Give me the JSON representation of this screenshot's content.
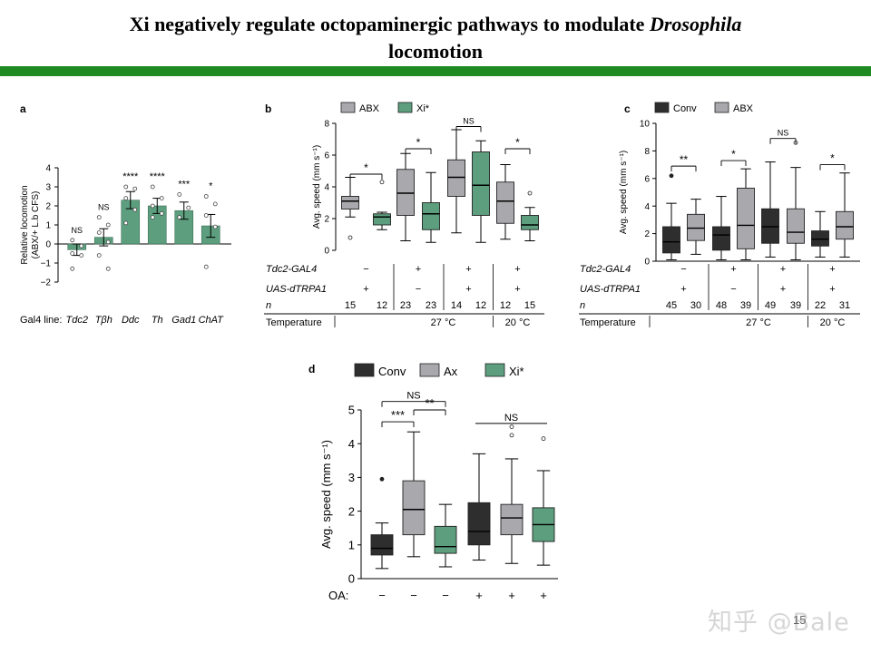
{
  "page": {
    "title_prefix": "Xi negatively regulate octopaminergic pathways to modulate ",
    "title_italic": "Drosophila",
    "title_suffix": " locomotion",
    "watermark": "知乎 @Bale",
    "page_number": "15"
  },
  "colors": {
    "green": "#5c9e7e",
    "grey": "#a8a8ad",
    "dark": "#2e2e2e",
    "rule": "#1f8a22"
  },
  "chart_data": [
    {
      "panel": "a",
      "type": "bar",
      "ylabel_line1": "Relative locomotion",
      "ylabel_line2": "(ABX/+ L.b CFS)",
      "ylim": [
        -2,
        4
      ],
      "yticks": [
        -2,
        -1,
        0,
        1,
        2,
        3,
        4
      ],
      "categories_label": "Gal4 line:",
      "categories": [
        "Tdc2",
        "Tβh",
        "Ddc",
        "Th",
        "Gad1",
        "ChAT"
      ],
      "values": [
        -0.3,
        0.35,
        2.3,
        2.0,
        1.75,
        0.95
      ],
      "error": [
        0.3,
        0.45,
        0.45,
        0.4,
        0.45,
        0.6
      ],
      "points": [
        [
          0.2,
          -0.1,
          -0.5,
          -0.6,
          -1.3
        ],
        [
          1.4,
          1.0,
          0.6,
          0.1,
          -0.6,
          -1.3
        ],
        [
          3.0,
          2.9,
          2.4,
          1.8,
          1.1
        ],
        [
          3.0,
          2.4,
          2.0,
          1.6,
          1.4
        ],
        [
          2.6,
          1.9,
          1.4
        ],
        [
          2.5,
          2.1,
          1.5,
          0.9,
          -1.2
        ]
      ],
      "significance": [
        "NS",
        "NS",
        "****",
        "****",
        "***",
        "*"
      ],
      "bar_colors": [
        "green",
        "green",
        "green",
        "green",
        "green",
        "green"
      ]
    },
    {
      "panel": "b",
      "type": "box",
      "ylabel": "Avg. speed (mm s⁻¹)",
      "ylim": [
        0,
        8
      ],
      "yticks": [
        0,
        2,
        4,
        6,
        8
      ],
      "legend": [
        {
          "name": "ABX",
          "color": "grey"
        },
        {
          "name": "Xi*",
          "color": "green"
        }
      ],
      "boxes": [
        {
          "color": "grey",
          "whisker_low": 2.1,
          "q1": 2.6,
          "median": 3.1,
          "q3": 3.4,
          "whisker_high": 4.6,
          "outliers": [
            0.8
          ]
        },
        {
          "color": "green",
          "whisker_low": 1.3,
          "q1": 1.6,
          "median": 2.1,
          "q3": 2.3,
          "whisker_high": 2.4,
          "outliers": [
            4.3
          ]
        },
        {
          "color": "grey",
          "whisker_low": 0.6,
          "q1": 2.2,
          "median": 3.6,
          "q3": 5.1,
          "whisker_high": 6.1,
          "outliers": []
        },
        {
          "color": "green",
          "whisker_low": 0.5,
          "q1": 1.3,
          "median": 2.3,
          "q3": 3.0,
          "whisker_high": 4.9,
          "outliers": []
        },
        {
          "color": "grey",
          "whisker_low": 1.1,
          "q1": 3.4,
          "median": 4.6,
          "q3": 5.7,
          "whisker_high": 7.6,
          "outliers": []
        },
        {
          "color": "green",
          "whisker_low": 0.5,
          "q1": 2.2,
          "median": 4.1,
          "q3": 6.2,
          "whisker_high": 6.9,
          "outliers": []
        },
        {
          "color": "grey",
          "whisker_low": 0.7,
          "q1": 1.7,
          "median": 3.1,
          "q3": 4.3,
          "whisker_high": 5.4,
          "outliers": []
        },
        {
          "color": "green",
          "whisker_low": 0.6,
          "q1": 1.3,
          "median": 1.6,
          "q3": 2.2,
          "whisker_high": 2.7,
          "outliers": [
            3.6
          ]
        }
      ],
      "brackets": [
        {
          "from": 0,
          "to": 1,
          "label": "*",
          "y": 4.8
        },
        {
          "from": 2,
          "to": 3,
          "label": "*",
          "y": 6.4
        },
        {
          "from": 4,
          "to": 5,
          "label": "NS",
          "y": 7.8
        },
        {
          "from": 6,
          "to": 7,
          "label": "*",
          "y": 6.4
        }
      ],
      "rows": [
        {
          "label": "Tdc2-GAL4",
          "italic": true,
          "values": [
            "−",
            "+",
            "+",
            "+"
          ]
        },
        {
          "label": "UAS-dTRPA1",
          "italic": true,
          "values": [
            "+",
            "−",
            "+",
            "+"
          ]
        },
        {
          "label": "n",
          "italic": true,
          "values": [
            "15",
            "12",
            "23",
            "23",
            "14",
            "12",
            "12",
            "15"
          ]
        }
      ],
      "temperature_label": "Temperature",
      "temperatures": [
        "27 °C",
        "20 °C"
      ]
    },
    {
      "panel": "c",
      "type": "box",
      "ylabel": "Avg. speed (mm s⁻¹)",
      "ylim": [
        0,
        10
      ],
      "yticks": [
        0,
        2,
        4,
        6,
        8,
        10
      ],
      "legend": [
        {
          "name": "Conv",
          "color": "dark"
        },
        {
          "name": "ABX",
          "color": "grey"
        }
      ],
      "boxes": [
        {
          "color": "dark",
          "whisker_low": 0.1,
          "q1": 0.6,
          "median": 1.4,
          "q3": 2.5,
          "whisker_high": 4.2,
          "outliers": [
            6.2
          ]
        },
        {
          "color": "grey",
          "whisker_low": 0.5,
          "q1": 1.5,
          "median": 2.4,
          "q3": 3.4,
          "whisker_high": 4.5,
          "outliers": []
        },
        {
          "color": "dark",
          "whisker_low": 0.1,
          "q1": 0.8,
          "median": 1.9,
          "q3": 2.5,
          "whisker_high": 4.7,
          "outliers": []
        },
        {
          "color": "grey",
          "whisker_low": 0.1,
          "q1": 0.9,
          "median": 2.6,
          "q3": 5.3,
          "whisker_high": 6.7,
          "outliers": []
        },
        {
          "color": "dark",
          "whisker_low": 0.3,
          "q1": 1.3,
          "median": 2.5,
          "q3": 3.8,
          "whisker_high": 7.2,
          "outliers": []
        },
        {
          "color": "grey",
          "whisker_low": 0.1,
          "q1": 1.3,
          "median": 2.1,
          "q3": 3.8,
          "whisker_high": 6.8,
          "outliers": [
            8.6
          ]
        },
        {
          "color": "dark",
          "whisker_low": 0.3,
          "q1": 1.1,
          "median": 1.6,
          "q3": 2.2,
          "whisker_high": 3.6,
          "outliers": []
        },
        {
          "color": "grey",
          "whisker_low": 0.3,
          "q1": 1.6,
          "median": 2.5,
          "q3": 3.6,
          "whisker_high": 6.4,
          "outliers": []
        }
      ],
      "brackets": [
        {
          "from": 0,
          "to": 1,
          "label": "**",
          "y": 6.9
        },
        {
          "from": 2,
          "to": 3,
          "label": "*",
          "y": 7.3
        },
        {
          "from": 4,
          "to": 5,
          "label": "NS",
          "y": 8.9
        },
        {
          "from": 6,
          "to": 7,
          "label": "*",
          "y": 7.0
        }
      ],
      "rows": [
        {
          "label": "Tdc2-GAL4",
          "italic": true,
          "values": [
            "−",
            "+",
            "+",
            "+"
          ]
        },
        {
          "label": "UAS-dTRPA1",
          "italic": true,
          "values": [
            "+",
            "−",
            "+",
            "+"
          ]
        },
        {
          "label": "n",
          "italic": true,
          "values": [
            "45",
            "30",
            "48",
            "39",
            "49",
            "39",
            "22",
            "31"
          ]
        }
      ],
      "temperature_label": "Temperature",
      "temperatures": [
        "27 °C",
        "20 °C"
      ]
    },
    {
      "panel": "d",
      "type": "box",
      "ylabel": "Avg. speed (mm s⁻¹)",
      "ylim": [
        0,
        5
      ],
      "yticks": [
        0,
        1,
        2,
        3,
        4,
        5
      ],
      "legend": [
        {
          "name": "Conv",
          "color": "dark"
        },
        {
          "name": "Ax",
          "color": "grey"
        },
        {
          "name": "Xi*",
          "color": "green"
        }
      ],
      "boxes": [
        {
          "color": "dark",
          "whisker_low": 0.3,
          "q1": 0.7,
          "median": 0.9,
          "q3": 1.3,
          "whisker_high": 1.65,
          "outliers": [
            2.95
          ]
        },
        {
          "color": "grey",
          "whisker_low": 0.65,
          "q1": 1.3,
          "median": 2.05,
          "q3": 2.9,
          "whisker_high": 4.35,
          "outliers": []
        },
        {
          "color": "green",
          "whisker_low": 0.35,
          "q1": 0.75,
          "median": 0.95,
          "q3": 1.55,
          "whisker_high": 2.2,
          "outliers": []
        },
        {
          "color": "dark",
          "whisker_low": 0.55,
          "q1": 1.0,
          "median": 1.4,
          "q3": 2.25,
          "whisker_high": 3.7,
          "outliers": []
        },
        {
          "color": "grey",
          "whisker_low": 0.45,
          "q1": 1.3,
          "median": 1.8,
          "q3": 2.2,
          "whisker_high": 3.55,
          "outliers": [
            4.25,
            4.5
          ]
        },
        {
          "color": "green",
          "whisker_low": 0.4,
          "q1": 1.1,
          "median": 1.6,
          "q3": 2.1,
          "whisker_high": 3.2,
          "outliers": [
            4.15
          ]
        }
      ],
      "brackets": [
        {
          "from": 0,
          "to": 1,
          "label": "***",
          "y": 4.65,
          "type": "bracket"
        },
        {
          "from": 1,
          "to": 2,
          "label": "**",
          "y": 5.0,
          "type": "bracket"
        },
        {
          "from": 0,
          "to": 2,
          "label": "NS",
          "y": 5.25,
          "type": "bracket"
        },
        {
          "from": 3,
          "to": 5,
          "label": "NS",
          "y": 4.6,
          "type": "line"
        }
      ],
      "rows": [
        {
          "label": "OA:",
          "italic": false,
          "values": [
            "−",
            "−",
            "−",
            "+",
            "+",
            "+"
          ]
        }
      ]
    }
  ]
}
